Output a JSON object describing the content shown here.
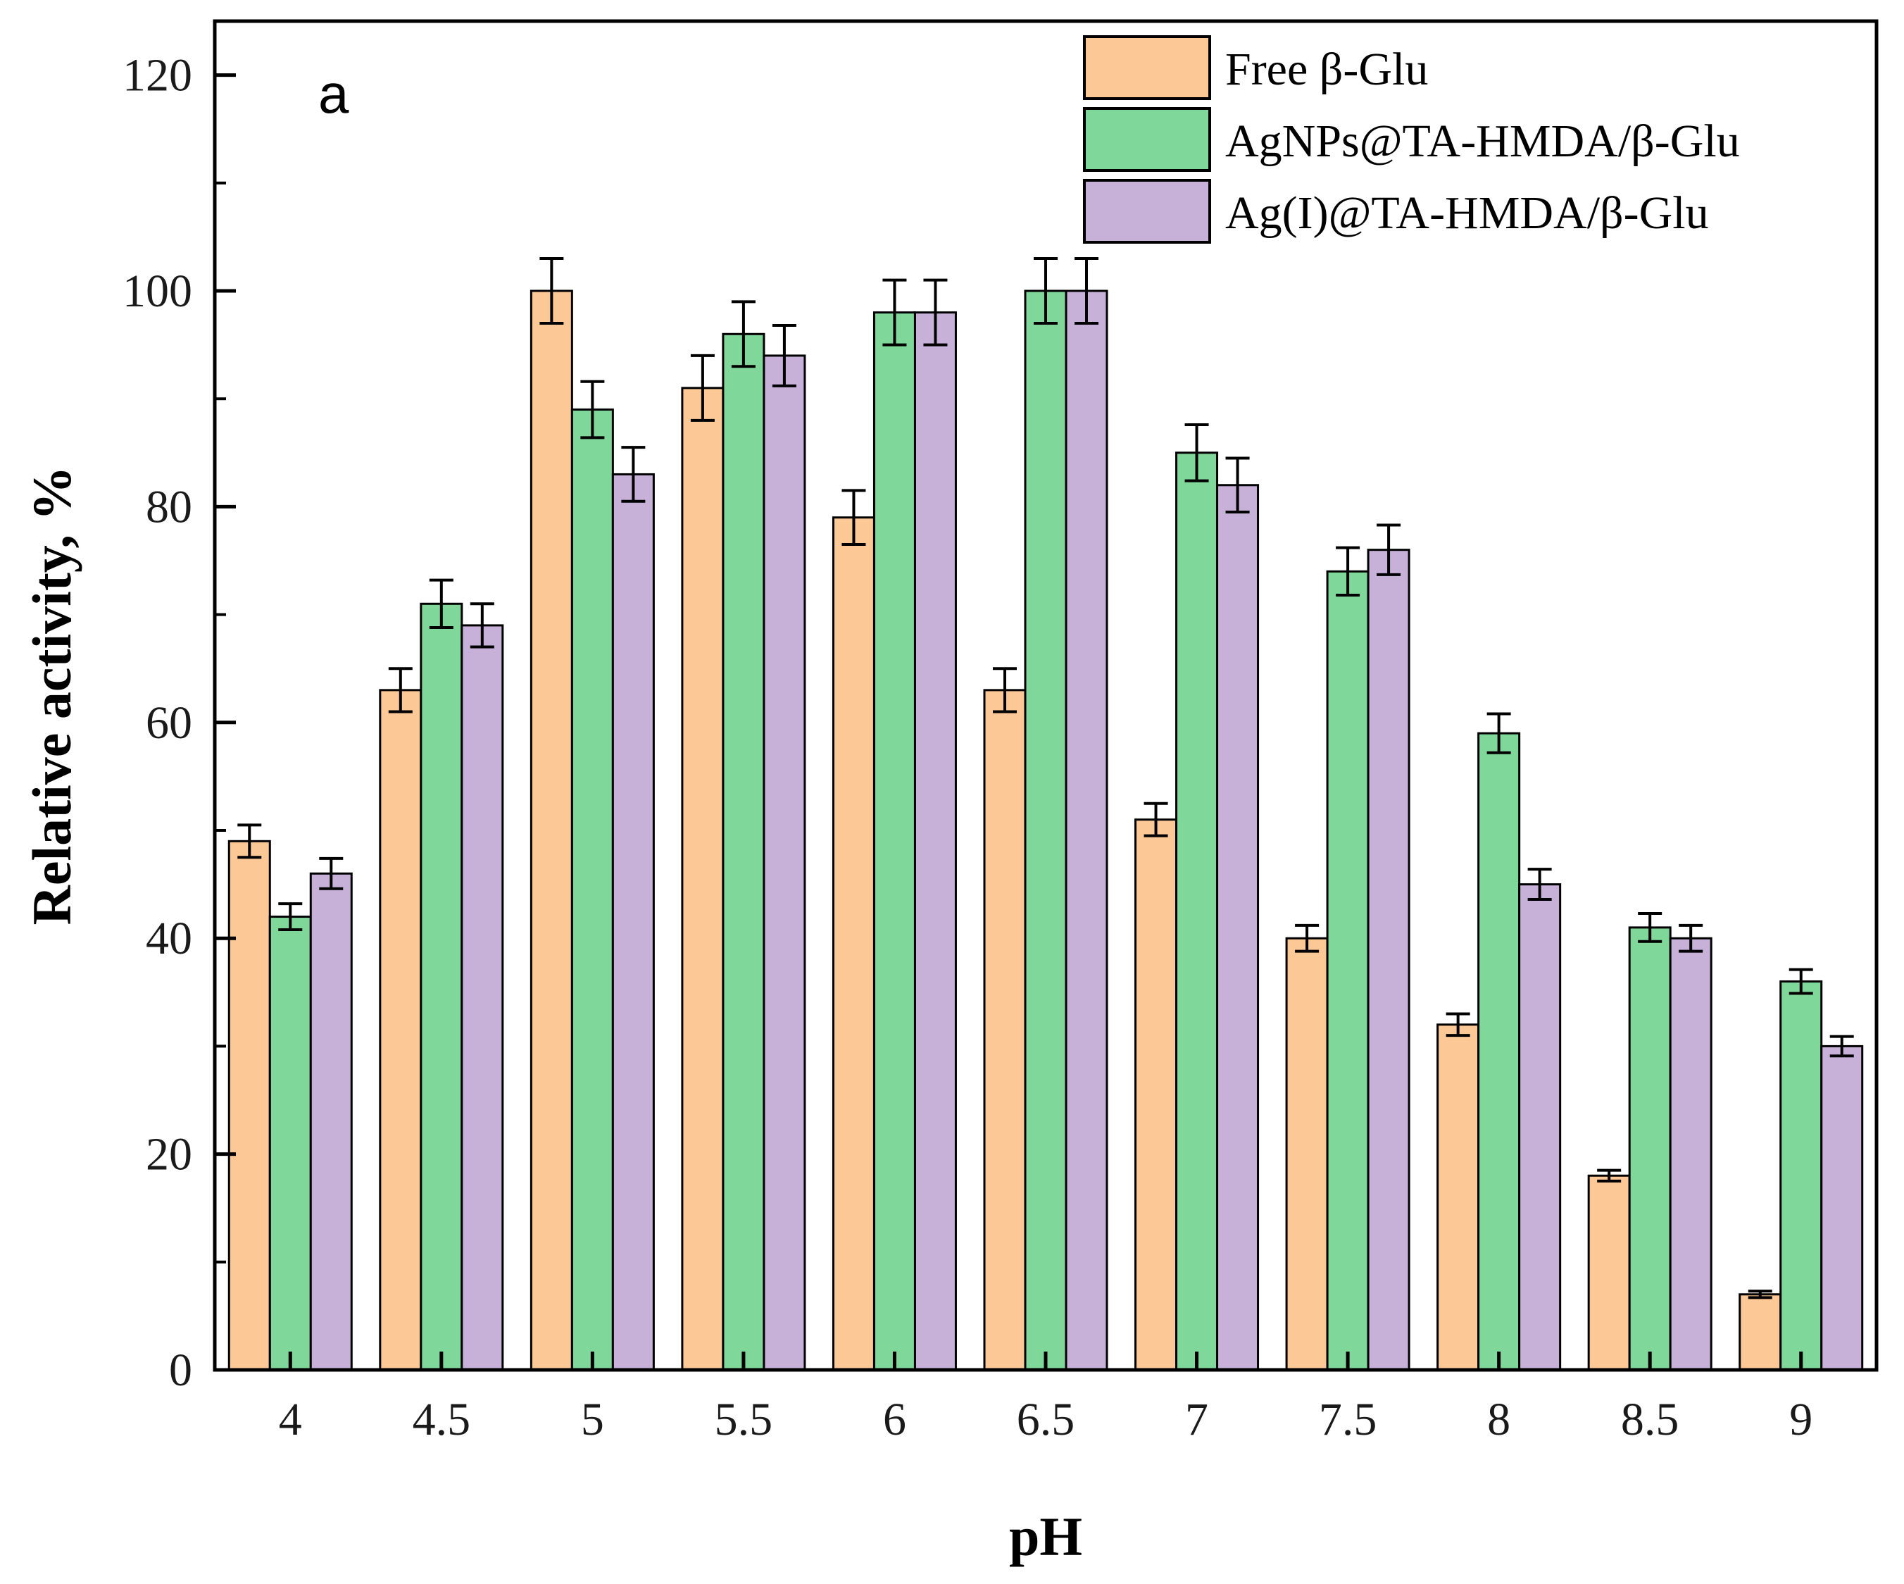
{
  "chart_data": {
    "type": "bar",
    "panel_label": "a",
    "title": "",
    "xlabel": "pH",
    "ylabel": "Relative activity, %",
    "categories": [
      "4",
      "4.5",
      "5",
      "5.5",
      "6",
      "6.5",
      "7",
      "7.5",
      "8",
      "8.5",
      "9"
    ],
    "ylim": [
      0,
      125
    ],
    "yticks": [
      0,
      20,
      40,
      60,
      80,
      100,
      120
    ],
    "grid": false,
    "legend_position": "top-right",
    "series": [
      {
        "name": "Free β-Glu",
        "color": "#FCC996",
        "values": [
          49,
          63,
          100,
          91,
          79,
          63,
          51,
          40,
          32,
          18,
          7
        ],
        "errors": [
          1.5,
          2,
          3,
          3,
          2.5,
          2,
          1.5,
          1.2,
          1,
          0.5,
          0.3
        ]
      },
      {
        "name": "AgNPs@TA-HMDA/β-Glu",
        "color": "#7FD79A",
        "values": [
          42,
          71,
          89,
          96,
          98,
          100,
          85,
          74,
          59,
          41,
          36
        ],
        "errors": [
          1.2,
          2.2,
          2.6,
          3,
          3,
          3,
          2.6,
          2.2,
          1.8,
          1.3,
          1.1
        ]
      },
      {
        "name": "Ag(I)@TA-HMDA/β-Glu",
        "color": "#C7B1D9",
        "values": [
          46,
          69,
          83,
          94,
          98,
          100,
          82,
          76,
          45,
          40,
          30
        ],
        "errors": [
          1.4,
          2,
          2.5,
          2.8,
          3,
          3,
          2.5,
          2.3,
          1.4,
          1.2,
          0.9
        ]
      }
    ]
  }
}
